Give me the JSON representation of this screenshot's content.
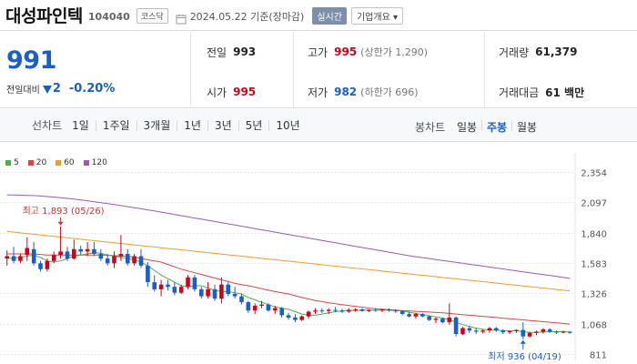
{
  "header": {
    "name": "대성파인텍",
    "code": "104040",
    "market": "코스닥",
    "as_of": "2024.05.22  기준(장마감)",
    "realtime_label": "실시간",
    "company_info_label": "기업개요 ▾"
  },
  "quote": {
    "price": "991",
    "change_label": "전일대비",
    "change": "2",
    "change_pct": "-0.20%",
    "prev_close_label": "전일",
    "prev_close": "993",
    "open_label": "시가",
    "open": "995",
    "high_label": "고가",
    "high": "995",
    "upper_limit": "(상한가 1,290)",
    "low_label": "저가",
    "low": "982",
    "lower_limit": "(하한가 696)",
    "volume_label": "거래량",
    "volume": "61,379",
    "amount_label": "거래대금",
    "amount": "61 백만",
    "colors": {
      "up": "#d0021b",
      "down": "#1a5fc8"
    }
  },
  "toolbar": {
    "line_chart_label": "선차트",
    "periods": [
      "1일",
      "1주일",
      "3개월",
      "1년",
      "3년",
      "5년",
      "10년"
    ],
    "candle_label": "봉차트",
    "candle_types": [
      "일봉",
      "주봉",
      "월봉"
    ],
    "active_candle": "주봉"
  },
  "chart_data": {
    "type": "candlestick",
    "legend": [
      {
        "name": "5",
        "color": "#4cae4c"
      },
      {
        "name": "20",
        "color": "#e34242"
      },
      {
        "name": "60",
        "color": "#f29b2d"
      },
      {
        "name": "120",
        "color": "#9b59b6"
      }
    ],
    "y_ticks": [
      "2,354",
      "2,097",
      "1,840",
      "1,583",
      "1,326",
      "1,068",
      "811"
    ],
    "ylim": [
      811,
      2354
    ],
    "annotations": {
      "high_label": "최고 1,893 (05/26)",
      "low_label": "최저 936 (04/19)"
    },
    "candles": [
      [
        1620,
        1690,
        1560,
        1640
      ],
      [
        1640,
        1720,
        1580,
        1600
      ],
      [
        1600,
        1660,
        1580,
        1640
      ],
      [
        1650,
        1800,
        1600,
        1710
      ],
      [
        1700,
        1760,
        1560,
        1580
      ],
      [
        1580,
        1600,
        1510,
        1530
      ],
      [
        1530,
        1620,
        1510,
        1600
      ],
      [
        1600,
        1680,
        1580,
        1650
      ],
      [
        1650,
        1893,
        1620,
        1680
      ],
      [
        1680,
        1720,
        1600,
        1620
      ],
      [
        1620,
        1780,
        1610,
        1700
      ],
      [
        1700,
        1730,
        1650,
        1680
      ],
      [
        1680,
        1760,
        1640,
        1700
      ],
      [
        1700,
        1760,
        1640,
        1660
      ],
      [
        1660,
        1700,
        1600,
        1620
      ],
      [
        1620,
        1660,
        1560,
        1580
      ],
      [
        1580,
        1680,
        1540,
        1640
      ],
      [
        1640,
        1820,
        1600,
        1660
      ],
      [
        1660,
        1700,
        1560,
        1580
      ],
      [
        1580,
        1660,
        1560,
        1640
      ],
      [
        1640,
        1700,
        1540,
        1560
      ],
      [
        1560,
        1590,
        1380,
        1420
      ],
      [
        1420,
        1480,
        1340,
        1360
      ],
      [
        1360,
        1440,
        1300,
        1400
      ],
      [
        1400,
        1440,
        1350,
        1380
      ],
      [
        1380,
        1420,
        1310,
        1330
      ],
      [
        1330,
        1400,
        1320,
        1380
      ],
      [
        1380,
        1480,
        1360,
        1460
      ],
      [
        1460,
        1480,
        1340,
        1360
      ],
      [
        1360,
        1380,
        1280,
        1300
      ],
      [
        1300,
        1420,
        1280,
        1360
      ],
      [
        1360,
        1400,
        1260,
        1280
      ],
      [
        1280,
        1460,
        1240,
        1400
      ],
      [
        1400,
        1420,
        1300,
        1320
      ],
      [
        1320,
        1380,
        1280,
        1300
      ],
      [
        1300,
        1320,
        1230,
        1250
      ],
      [
        1250,
        1260,
        1160,
        1180
      ],
      [
        1180,
        1240,
        1150,
        1220
      ],
      [
        1220,
        1260,
        1200,
        1230
      ],
      [
        1230,
        1240,
        1170,
        1180
      ],
      [
        1180,
        1220,
        1150,
        1200
      ],
      [
        1200,
        1210,
        1120,
        1140
      ],
      [
        1140,
        1160,
        1100,
        1120
      ],
      [
        1120,
        1150,
        1080,
        1100
      ],
      [
        1100,
        1140,
        1090,
        1130
      ],
      [
        1130,
        1180,
        1110,
        1170
      ],
      [
        1170,
        1200,
        1150,
        1180
      ],
      [
        1180,
        1200,
        1160,
        1175
      ],
      [
        1175,
        1200,
        1150,
        1185
      ],
      [
        1185,
        1210,
        1165,
        1180
      ],
      [
        1180,
        1195,
        1160,
        1170
      ],
      [
        1170,
        1200,
        1160,
        1185
      ],
      [
        1185,
        1200,
        1170,
        1190
      ],
      [
        1190,
        1200,
        1170,
        1175
      ],
      [
        1175,
        1190,
        1165,
        1185
      ],
      [
        1185,
        1200,
        1170,
        1180
      ],
      [
        1180,
        1195,
        1165,
        1190
      ],
      [
        1190,
        1200,
        1170,
        1180
      ],
      [
        1180,
        1190,
        1160,
        1175
      ],
      [
        1175,
        1180,
        1140,
        1150
      ],
      [
        1150,
        1170,
        1120,
        1130
      ],
      [
        1130,
        1160,
        1110,
        1150
      ],
      [
        1150,
        1160,
        1120,
        1130
      ],
      [
        1130,
        1140,
        1090,
        1100
      ],
      [
        1100,
        1120,
        1070,
        1110
      ],
      [
        1110,
        1120,
        1070,
        1080
      ],
      [
        1080,
        1240,
        1060,
        1120
      ],
      [
        1120,
        1130,
        960,
        980
      ],
      [
        980,
        1040,
        970,
        1030
      ],
      [
        1030,
        1050,
        990,
        1010
      ],
      [
        1010,
        1030,
        980,
        1000
      ],
      [
        1000,
        1020,
        985,
        1010
      ],
      [
        1010,
        1040,
        990,
        1030
      ],
      [
        1030,
        1040,
        1000,
        1010
      ],
      [
        1010,
        1020,
        980,
        995
      ],
      [
        995,
        1010,
        980,
        1005
      ],
      [
        1005,
        1020,
        990,
        1015
      ],
      [
        1015,
        1080,
        936,
        960
      ],
      [
        960,
        1000,
        950,
        990
      ],
      [
        990,
        1010,
        970,
        1000
      ],
      [
        1000,
        1030,
        985,
        1020
      ],
      [
        1020,
        1030,
        990,
        1000
      ],
      [
        1000,
        1010,
        980,
        995
      ],
      [
        995,
        1010,
        985,
        1000
      ],
      [
        1000,
        1005,
        982,
        991
      ]
    ],
    "ma5": [
      1620,
      1625,
      1630,
      1640,
      1650,
      1630,
      1600,
      1590,
      1600,
      1620,
      1640,
      1650,
      1660,
      1670,
      1665,
      1650,
      1640,
      1630,
      1620,
      1610,
      1590,
      1560,
      1520,
      1480,
      1450,
      1420,
      1390,
      1380,
      1390,
      1390,
      1370,
      1350,
      1340,
      1340,
      1330,
      1320,
      1290,
      1270,
      1250,
      1230,
      1210,
      1200,
      1190,
      1170,
      1150,
      1140,
      1140,
      1150,
      1160,
      1170,
      1175,
      1180,
      1180,
      1182,
      1182,
      1182,
      1182,
      1182,
      1180,
      1175,
      1165,
      1155,
      1145,
      1135,
      1125,
      1115,
      1105,
      1080,
      1060,
      1045,
      1030,
      1020,
      1015,
      1012,
      1010,
      1008,
      1008,
      1000,
      995,
      995,
      997,
      1000,
      1000,
      1000,
      998
    ],
    "ma20": [
      1660,
      1660,
      1660,
      1660,
      1660,
      1655,
      1650,
      1650,
      1650,
      1650,
      1650,
      1650,
      1650,
      1650,
      1650,
      1648,
      1645,
      1643,
      1640,
      1630,
      1620,
      1610,
      1600,
      1590,
      1570,
      1550,
      1530,
      1515,
      1500,
      1485,
      1470,
      1455,
      1440,
      1425,
      1410,
      1400,
      1390,
      1378,
      1365,
      1352,
      1340,
      1330,
      1320,
      1305,
      1290,
      1278,
      1265,
      1255,
      1245,
      1237,
      1230,
      1222,
      1215,
      1208,
      1200,
      1195,
      1190,
      1187,
      1183,
      1180,
      1177,
      1173,
      1170,
      1167,
      1163,
      1160,
      1155,
      1150,
      1145,
      1140,
      1135,
      1130,
      1125,
      1120,
      1115,
      1110,
      1105,
      1100,
      1095,
      1090,
      1085,
      1080,
      1075,
      1070,
      1065
    ],
    "ma60": [
      1850,
      1844,
      1838,
      1832,
      1826,
      1820,
      1814,
      1808,
      1802,
      1796,
      1790,
      1784,
      1778,
      1772,
      1766,
      1760,
      1754,
      1748,
      1742,
      1736,
      1730,
      1724,
      1718,
      1712,
      1706,
      1700,
      1694,
      1688,
      1682,
      1676,
      1670,
      1664,
      1658,
      1652,
      1646,
      1640,
      1634,
      1628,
      1622,
      1616,
      1610,
      1604,
      1598,
      1592,
      1586,
      1580,
      1574,
      1568,
      1562,
      1556,
      1550,
      1544,
      1538,
      1532,
      1526,
      1520,
      1514,
      1508,
      1502,
      1496,
      1490,
      1484,
      1478,
      1472,
      1466,
      1460,
      1454,
      1448,
      1442,
      1436,
      1430,
      1424,
      1418,
      1412,
      1406,
      1400,
      1394,
      1388,
      1382,
      1376,
      1370,
      1364,
      1358,
      1352,
      1346
    ],
    "ma120": [
      2160,
      2159,
      2158,
      2156,
      2154,
      2150,
      2146,
      2141,
      2136,
      2130,
      2124,
      2117,
      2110,
      2102,
      2094,
      2086,
      2078,
      2069,
      2060,
      2051,
      2042,
      2033,
      2024,
      2014,
      2004,
      1994,
      1984,
      1974,
      1964,
      1954,
      1944,
      1934,
      1924,
      1914,
      1904,
      1894,
      1884,
      1874,
      1864,
      1854,
      1844,
      1834,
      1824,
      1814,
      1804,
      1794,
      1784,
      1774,
      1764,
      1754,
      1744,
      1734,
      1724,
      1714,
      1704,
      1694,
      1684,
      1674,
      1664,
      1654,
      1644,
      1636,
      1628,
      1620,
      1612,
      1604,
      1596,
      1588,
      1580,
      1572,
      1564,
      1556,
      1548,
      1540,
      1532,
      1524,
      1516,
      1508,
      1500,
      1492,
      1484,
      1476,
      1468,
      1460,
      1452
    ]
  }
}
